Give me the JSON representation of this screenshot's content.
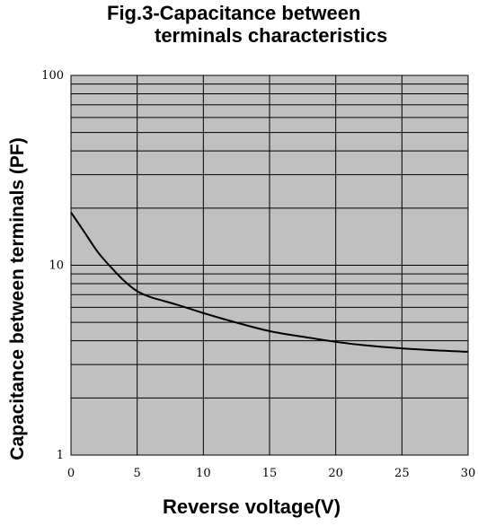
{
  "chart_data": {
    "type": "line",
    "title_line1": "Fig.3-Capacitance between",
    "title_line2": "terminals characteristics",
    "xlabel": "Reverse voltage(V)",
    "ylabel": "Capacitance between terminals (PF)",
    "xlim": [
      0,
      30
    ],
    "ylim": [
      1,
      100
    ],
    "yscale": "log",
    "grid": true,
    "plot_background": "#c0c0c0",
    "line_color": "#000000",
    "x_ticks": [
      "0",
      "5",
      "10",
      "15",
      "20",
      "25",
      "30"
    ],
    "y_ticks": [
      "1",
      "10",
      "100"
    ],
    "series": [
      {
        "x": [
          0,
          1,
          2,
          3,
          4,
          5,
          6,
          8,
          10,
          12,
          15,
          18,
          20,
          22,
          25,
          28,
          30
        ],
        "y": [
          19,
          15,
          11.8,
          9.8,
          8.3,
          7.3,
          6.8,
          6.2,
          5.6,
          5.1,
          4.5,
          4.15,
          3.95,
          3.8,
          3.65,
          3.55,
          3.5
        ]
      }
    ]
  }
}
